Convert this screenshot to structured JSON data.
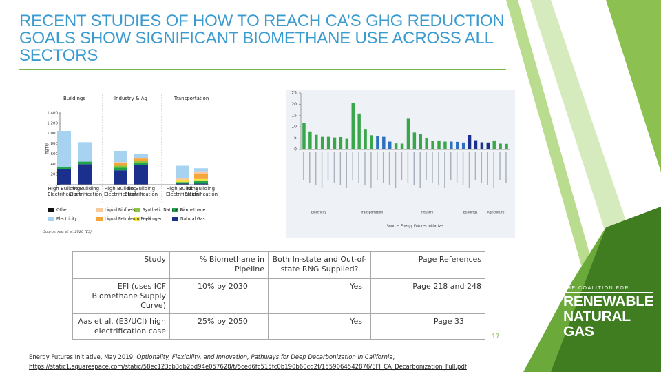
{
  "title": "RECENT STUDIES OF HOW TO REACH CA’S GHG REDUCTION GOALS SHOW SIGNIFICANT BIOMETHANE USE ACROSS ALL SECTORS",
  "left_source": "Source: Aas et al. 2020 (E3)",
  "chart_data": [
    {
      "type": "bar",
      "stacked": true,
      "sections": [
        "Buildings",
        "Industry & Ag",
        "Transportation"
      ],
      "ylabel": "TBTU",
      "categories": [
        "High Building Electrification",
        "No Building Electrification",
        "High Building Electrification",
        "No Building Electrification",
        "High Building Electrification",
        "No Building Electrification"
      ],
      "series": [
        {
          "name": "Natural Gas",
          "color": "#1b2f8c",
          "values": [
            300,
            400,
            280,
            380,
            20,
            20
          ]
        },
        {
          "name": "Biomethane",
          "color": "#1fa54a",
          "values": [
            50,
            50,
            50,
            50,
            30,
            50
          ]
        },
        {
          "name": "Hydrogen",
          "color": "#f2e43a",
          "values": [
            0,
            0,
            0,
            0,
            30,
            40
          ]
        },
        {
          "name": "Synthetic Natural Gas",
          "color": "#8cc63f",
          "values": [
            0,
            0,
            40,
            40,
            0,
            0
          ]
        },
        {
          "name": "Liquid Petroleum Fuels",
          "color": "#f4a53b",
          "values": [
            0,
            0,
            60,
            40,
            0,
            100
          ]
        },
        {
          "name": "Liquid Biofuels",
          "color": "#f8c99c",
          "values": [
            0,
            0,
            10,
            10,
            40,
            50
          ]
        },
        {
          "name": "Electricity",
          "color": "#a7d3f1",
          "values": [
            700,
            380,
            220,
            80,
            250,
            60
          ]
        },
        {
          "name": "Other",
          "color": "#111111",
          "values": [
            0,
            0,
            0,
            0,
            0,
            0
          ]
        }
      ],
      "ylim": [
        0,
        1400
      ],
      "yticks": [
        0,
        200,
        400,
        600,
        800,
        {
          "value": 1000,
          "label": "1,000"
        },
        {
          "value": 1200,
          "label": "1,200"
        },
        {
          "value": 1400,
          "label": "1,400"
        }
      ]
    },
    {
      "type": "bar",
      "groups": [
        "Electricity",
        "Transportation",
        "Industry",
        "Buildings",
        "Agriculture"
      ],
      "source": "Source: Energy Futures Initiative",
      "values": [
        11.7,
        8.0,
        6.5,
        5.6,
        5.6,
        5.3,
        5.5,
        4.7,
        20.6,
        15.9,
        9.1,
        6.3,
        5.9,
        5.6,
        3.5,
        2.7,
        2.6,
        13.6,
        7.5,
        6.7,
        5.1,
        3.9,
        4.0,
        3.5,
        3.5,
        3.4,
        3.1,
        6.4,
        4.1,
        3.2,
        3.1,
        4.0,
        2.6,
        2.5
      ],
      "colors": [
        "#3aa64a",
        "#3aa64a",
        "#3aa64a",
        "#3aa64a",
        "#3aa64a",
        "#3aa64a",
        "#3aa64a",
        "#3aa64a",
        "#3aa64a",
        "#3aa64a",
        "#3aa64a",
        "#3aa64a",
        "#2f6fc0",
        "#2f6fc0",
        "#2f6fc0",
        "#3aa64a",
        "#3aa64a",
        "#3aa64a",
        "#3aa64a",
        "#3aa64a",
        "#3aa64a",
        "#3aa64a",
        "#3aa64a",
        "#3aa64a",
        "#2f6fc0",
        "#2f6fc0",
        "#2f6fc0",
        "#1b2f8c",
        "#1b2f8c",
        "#1b2f8c",
        "#1b2f8c",
        "#3aa64a",
        "#3aa64a",
        "#3aa64a"
      ],
      "ylim": [
        0,
        25
      ],
      "yticks": [
        0,
        5,
        10,
        15,
        20,
        25
      ]
    }
  ],
  "table": {
    "header": [
      "Study",
      "% Biomethane in Pipeline",
      "Both In-state and Out-of-state RNG Supplied?",
      "Page References"
    ],
    "rows": [
      [
        "EFI (uses ICF Biomethane Supply Curve)",
        "10% by 2030",
        "Yes",
        "Page 218 and 248"
      ],
      [
        "Aas et al. (E3/UCI) high electrification case",
        "25% by 2050",
        "Yes",
        "Page 33"
      ]
    ]
  },
  "page_number": "17",
  "footer": {
    "citation_prefix": "Energy Futures Initiative, May 2019, ",
    "citation_title": "Optionality, Flexibility, and Innovation, Pathways for Deep Decarbonization in California",
    "citation_suffix": ",",
    "url": "https://static1.squarespace.com/static/58ec123cb3db2bd94e057628/t/5ced6fc515fc0b190b60cd2f/1559064542876/EFI_CA_Decarbonization_Full.pdf"
  },
  "logo": {
    "top": "THE COALITION FOR",
    "line1": "RENEWABLE",
    "line2": "NATURAL GAS"
  }
}
